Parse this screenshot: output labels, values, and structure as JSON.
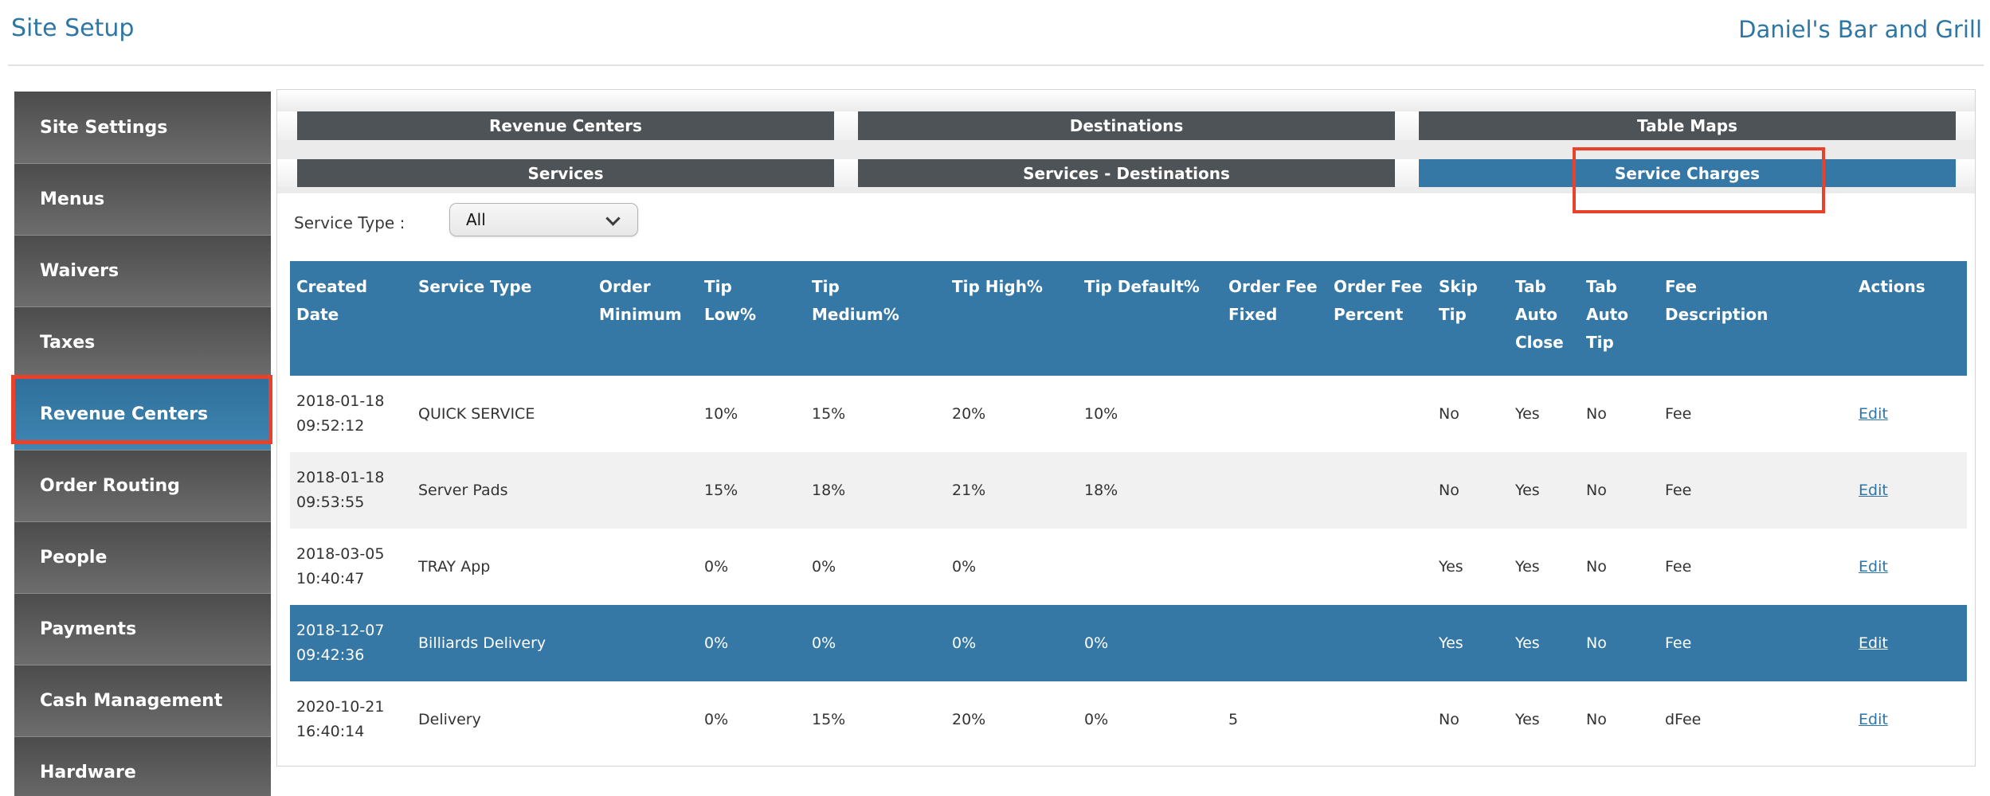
{
  "page": {
    "title": "Site Setup",
    "site_name": "Daniel's Bar and Grill"
  },
  "colors": {
    "accent": "#3578a6",
    "tab_dark": "#4d5357",
    "annotation_red": "#e8412c",
    "link_blue": "#2d76a5",
    "title_blue": "#2d76a5"
  },
  "sidebar": {
    "items": [
      {
        "label": "Site Settings",
        "active": false
      },
      {
        "label": "Menus",
        "active": false
      },
      {
        "label": "Waivers",
        "active": false
      },
      {
        "label": "Taxes",
        "active": false
      },
      {
        "label": "Revenue Centers",
        "active": true,
        "annotated": true
      },
      {
        "label": "Order Routing",
        "active": false
      },
      {
        "label": "People",
        "active": false
      },
      {
        "label": "Payments",
        "active": false
      },
      {
        "label": "Cash Management",
        "active": false
      },
      {
        "label": "Hardware",
        "active": false
      }
    ]
  },
  "tabs": {
    "row1": [
      {
        "label": "Revenue Centers",
        "active": false
      },
      {
        "label": "Destinations",
        "active": false
      },
      {
        "label": "Table Maps",
        "active": false
      }
    ],
    "row2": [
      {
        "label": "Services",
        "active": false
      },
      {
        "label": "Services - Destinations",
        "active": false
      },
      {
        "label": "Service Charges",
        "active": true,
        "annotated": true
      }
    ]
  },
  "filter": {
    "label": "Service Type :",
    "value": "All"
  },
  "table": {
    "columns": [
      {
        "id": "created_date",
        "label": "Created\nDate"
      },
      {
        "id": "service_type",
        "label": "Service Type"
      },
      {
        "id": "order_minimum",
        "label": "Order\nMinimum"
      },
      {
        "id": "tip_low",
        "label": "Tip\nLow%"
      },
      {
        "id": "tip_medium",
        "label": "Tip\nMedium%"
      },
      {
        "id": "tip_high",
        "label": "Tip High%"
      },
      {
        "id": "tip_default",
        "label": "Tip Default%"
      },
      {
        "id": "order_fee_fixed",
        "label": "Order Fee\nFixed"
      },
      {
        "id": "order_fee_percent",
        "label": "Order Fee\nPercent"
      },
      {
        "id": "skip_tip",
        "label": "Skip\nTip"
      },
      {
        "id": "tab_auto_close",
        "label": "Tab\nAuto\nClose"
      },
      {
        "id": "tab_auto_tip",
        "label": "Tab\nAuto\nTip"
      },
      {
        "id": "fee_description",
        "label": "Fee\nDescription"
      },
      {
        "id": "actions",
        "label": "Actions"
      }
    ],
    "rows": [
      {
        "selected": false,
        "cells": [
          "2018-01-18\n09:52:12",
          "QUICK SERVICE",
          "",
          "10%",
          "15%",
          "20%",
          "10%",
          "",
          "",
          "No",
          "Yes",
          "No",
          "Fee",
          "Edit"
        ]
      },
      {
        "selected": false,
        "cells": [
          "2018-01-18\n09:53:55",
          "Server Pads",
          "",
          "15%",
          "18%",
          "21%",
          "18%",
          "",
          "",
          "No",
          "Yes",
          "No",
          "Fee",
          "Edit"
        ]
      },
      {
        "selected": false,
        "cells": [
          "2018-03-05\n10:40:47",
          "TRAY App",
          "",
          "0%",
          "0%",
          "0%",
          "",
          "",
          "",
          "Yes",
          "Yes",
          "No",
          "Fee",
          "Edit"
        ]
      },
      {
        "selected": true,
        "cells": [
          "2018-12-07\n09:42:36",
          "Billiards Delivery",
          "",
          "0%",
          "0%",
          "0%",
          "0%",
          "",
          "",
          "Yes",
          "Yes",
          "No",
          "Fee",
          "Edit"
        ]
      },
      {
        "selected": false,
        "cells": [
          "2020-10-21\n16:40:14",
          "Delivery",
          "",
          "0%",
          "15%",
          "20%",
          "0%",
          "5",
          "",
          "No",
          "Yes",
          "No",
          "dFee",
          "Edit"
        ]
      }
    ]
  }
}
